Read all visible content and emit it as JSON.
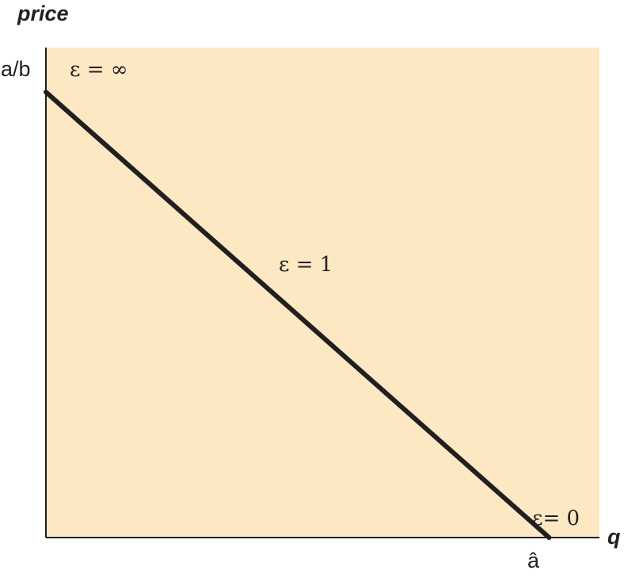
{
  "colors": {
    "plot_background": "#fde8c4",
    "line": "#231f20",
    "axis": "#231f20"
  },
  "chart_data": {
    "type": "line",
    "title": "",
    "xlabel": "q",
    "ylabel": "price",
    "x_tick_labels": [
      "â"
    ],
    "y_tick_labels": [
      "a/b"
    ],
    "xlim": [
      0,
      1.1
    ],
    "ylim": [
      0,
      1.1
    ],
    "series": [
      {
        "x": [
          0,
          1
        ],
        "y": [
          1,
          0
        ]
      }
    ],
    "annotations": [
      {
        "text": "ε = ∞"
      },
      {
        "text": "ε = 1"
      },
      {
        "text": "ε= 0"
      }
    ],
    "grid": false,
    "legend": "none"
  }
}
